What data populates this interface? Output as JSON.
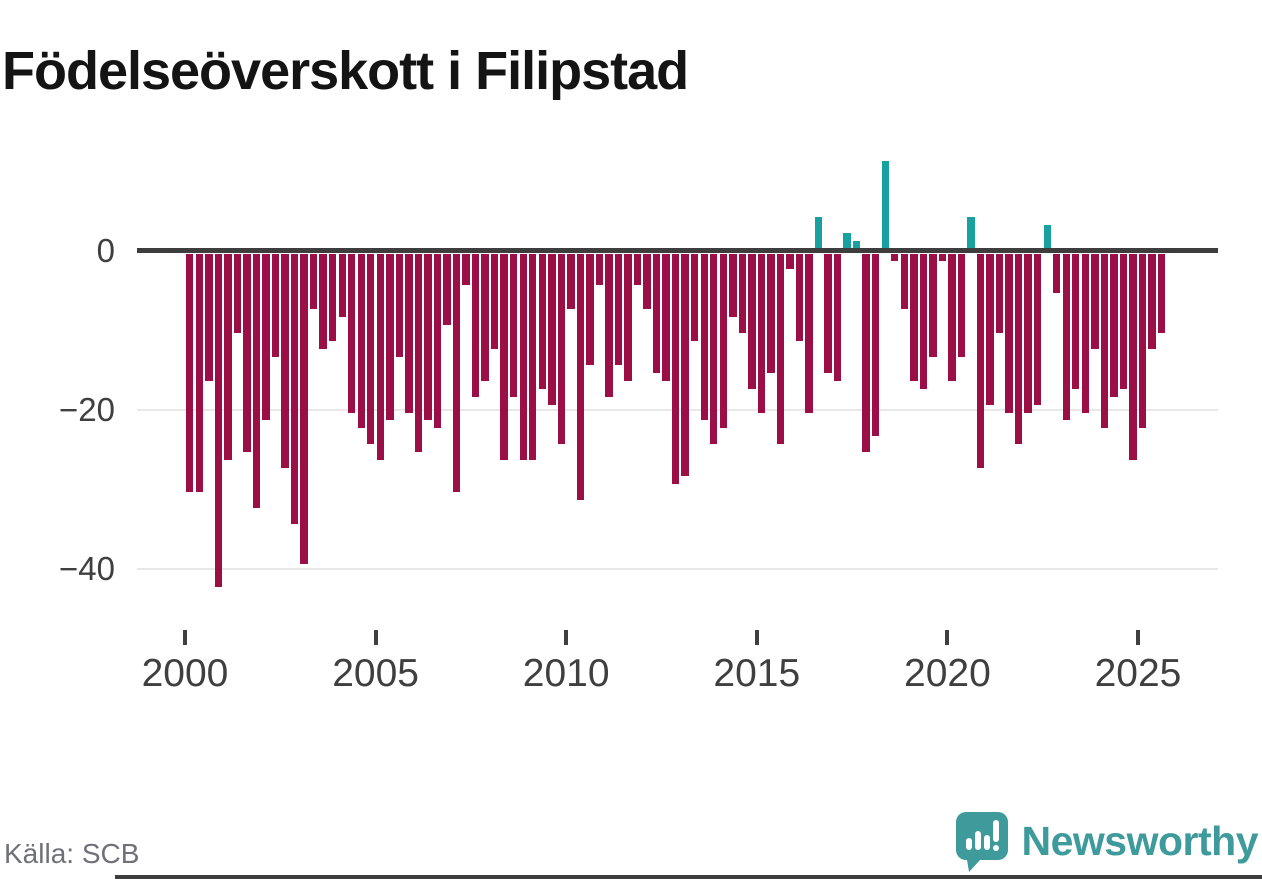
{
  "header": {
    "title": "Födelseöverskott i Filipstad"
  },
  "footer": {
    "source": "Källa: SCB",
    "brand": "Newsworthy"
  },
  "colors": {
    "title_text": "#141414",
    "negative": "#9c0f46",
    "positive": "#18a1a1",
    "axis": "#3d3d3d",
    "grid": "#e8e8e8",
    "tick_label": "#3f3f3f",
    "source_text": "#70707a",
    "brand_teal": "#3e9a9b"
  },
  "chart_data": {
    "type": "bar",
    "title": "Födelseöverskott i Filipstad",
    "source": "Källa: SCB",
    "grid": "horizontal",
    "legend": "none",
    "x_ticks": [
      2000,
      2005,
      2010,
      2015,
      2020,
      2025
    ],
    "y_ticks": [
      0,
      -20,
      -40
    ],
    "ylim": [
      -44,
      13
    ],
    "negative_color": "#9c0f46",
    "positive_color": "#18a1a1",
    "x": [
      "2000Q1",
      "2000Q2",
      "2000Q3",
      "2000Q4",
      "2001Q1",
      "2001Q2",
      "2001Q3",
      "2001Q4",
      "2002Q1",
      "2002Q2",
      "2002Q3",
      "2002Q4",
      "2003Q1",
      "2003Q2",
      "2003Q3",
      "2003Q4",
      "2004Q1",
      "2004Q2",
      "2004Q3",
      "2004Q4",
      "2005Q1",
      "2005Q2",
      "2005Q3",
      "2005Q4",
      "2006Q1",
      "2006Q2",
      "2006Q3",
      "2006Q4",
      "2007Q1",
      "2007Q2",
      "2007Q3",
      "2007Q4",
      "2008Q1",
      "2008Q2",
      "2008Q3",
      "2008Q4",
      "2009Q1",
      "2009Q2",
      "2009Q3",
      "2009Q4",
      "2010Q1",
      "2010Q2",
      "2010Q3",
      "2010Q4",
      "2011Q1",
      "2011Q2",
      "2011Q3",
      "2011Q4",
      "2012Q1",
      "2012Q2",
      "2012Q3",
      "2012Q4",
      "2013Q1",
      "2013Q2",
      "2013Q3",
      "2013Q4",
      "2014Q1",
      "2014Q2",
      "2014Q3",
      "2014Q4",
      "2015Q1",
      "2015Q2",
      "2015Q3",
      "2015Q4",
      "2016Q1",
      "2016Q2",
      "2016Q3",
      "2016Q4",
      "2017Q1",
      "2017Q2",
      "2017Q3",
      "2017Q4",
      "2018Q1",
      "2018Q2",
      "2018Q3",
      "2018Q4",
      "2019Q1",
      "2019Q2",
      "2019Q3",
      "2019Q4",
      "2020Q1",
      "2020Q2",
      "2020Q3",
      "2020Q4",
      "2021Q1",
      "2021Q2",
      "2021Q3",
      "2021Q4",
      "2022Q1",
      "2022Q2",
      "2022Q3",
      "2022Q4",
      "2023Q1",
      "2023Q2",
      "2023Q3",
      "2023Q4",
      "2024Q1",
      "2024Q2",
      "2024Q3",
      "2024Q4",
      "2025Q1",
      "2025Q2",
      "2025Q3"
    ],
    "values": [
      -30,
      -30,
      -16,
      -42,
      -26,
      -10,
      -25,
      -32,
      -21,
      -13,
      -27,
      -34,
      -39,
      -7,
      -12,
      -11,
      -8,
      -20,
      -22,
      -24,
      -26,
      -21,
      -13,
      -20,
      -25,
      -21,
      -22,
      -9,
      -30,
      -4,
      -18,
      -16,
      -12,
      -26,
      -18,
      -26,
      -26,
      -17,
      -19,
      -24,
      -7,
      -31,
      -14,
      -4,
      -18,
      -14,
      -16,
      -4,
      -7,
      -15,
      -16,
      -29,
      -28,
      -11,
      -21,
      -24,
      -22,
      -8,
      -10,
      -17,
      -20,
      -15,
      -24,
      -2,
      -11,
      -20,
      4,
      -15,
      -16,
      2,
      1,
      -25,
      -23,
      11,
      -1,
      -7,
      -16,
      -17,
      -13,
      -1,
      -16,
      -13,
      4,
      -27,
      -19,
      -10,
      -20,
      -24,
      -20,
      -19,
      3,
      -5,
      -21,
      -17,
      -20,
      -12,
      -22,
      -18,
      -17,
      -26,
      -22,
      -12,
      -10
    ]
  }
}
